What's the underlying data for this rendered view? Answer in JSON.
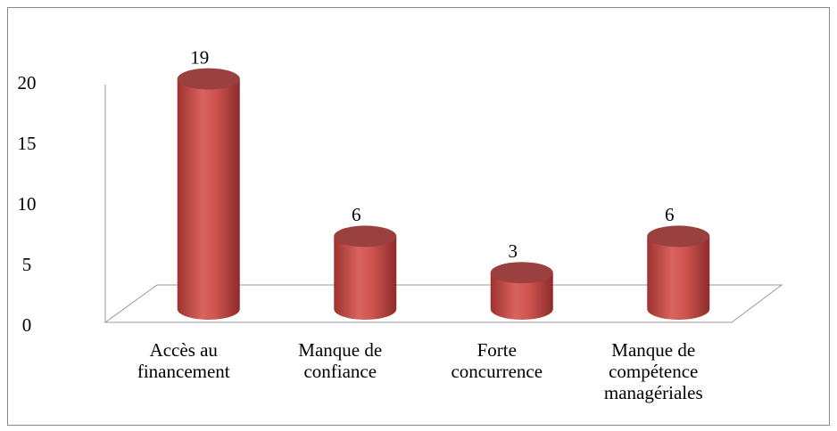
{
  "chart_data": {
    "type": "bar3d",
    "categories": [
      "Accès au financement",
      "Manque de confiance",
      "Forte concurrence",
      "Manque de compétence managériales"
    ],
    "values": [
      19,
      6,
      3,
      6
    ],
    "color": "#c0504d",
    "ylim": [
      0,
      20
    ],
    "yticks": [
      0,
      5,
      10,
      15,
      20
    ]
  }
}
